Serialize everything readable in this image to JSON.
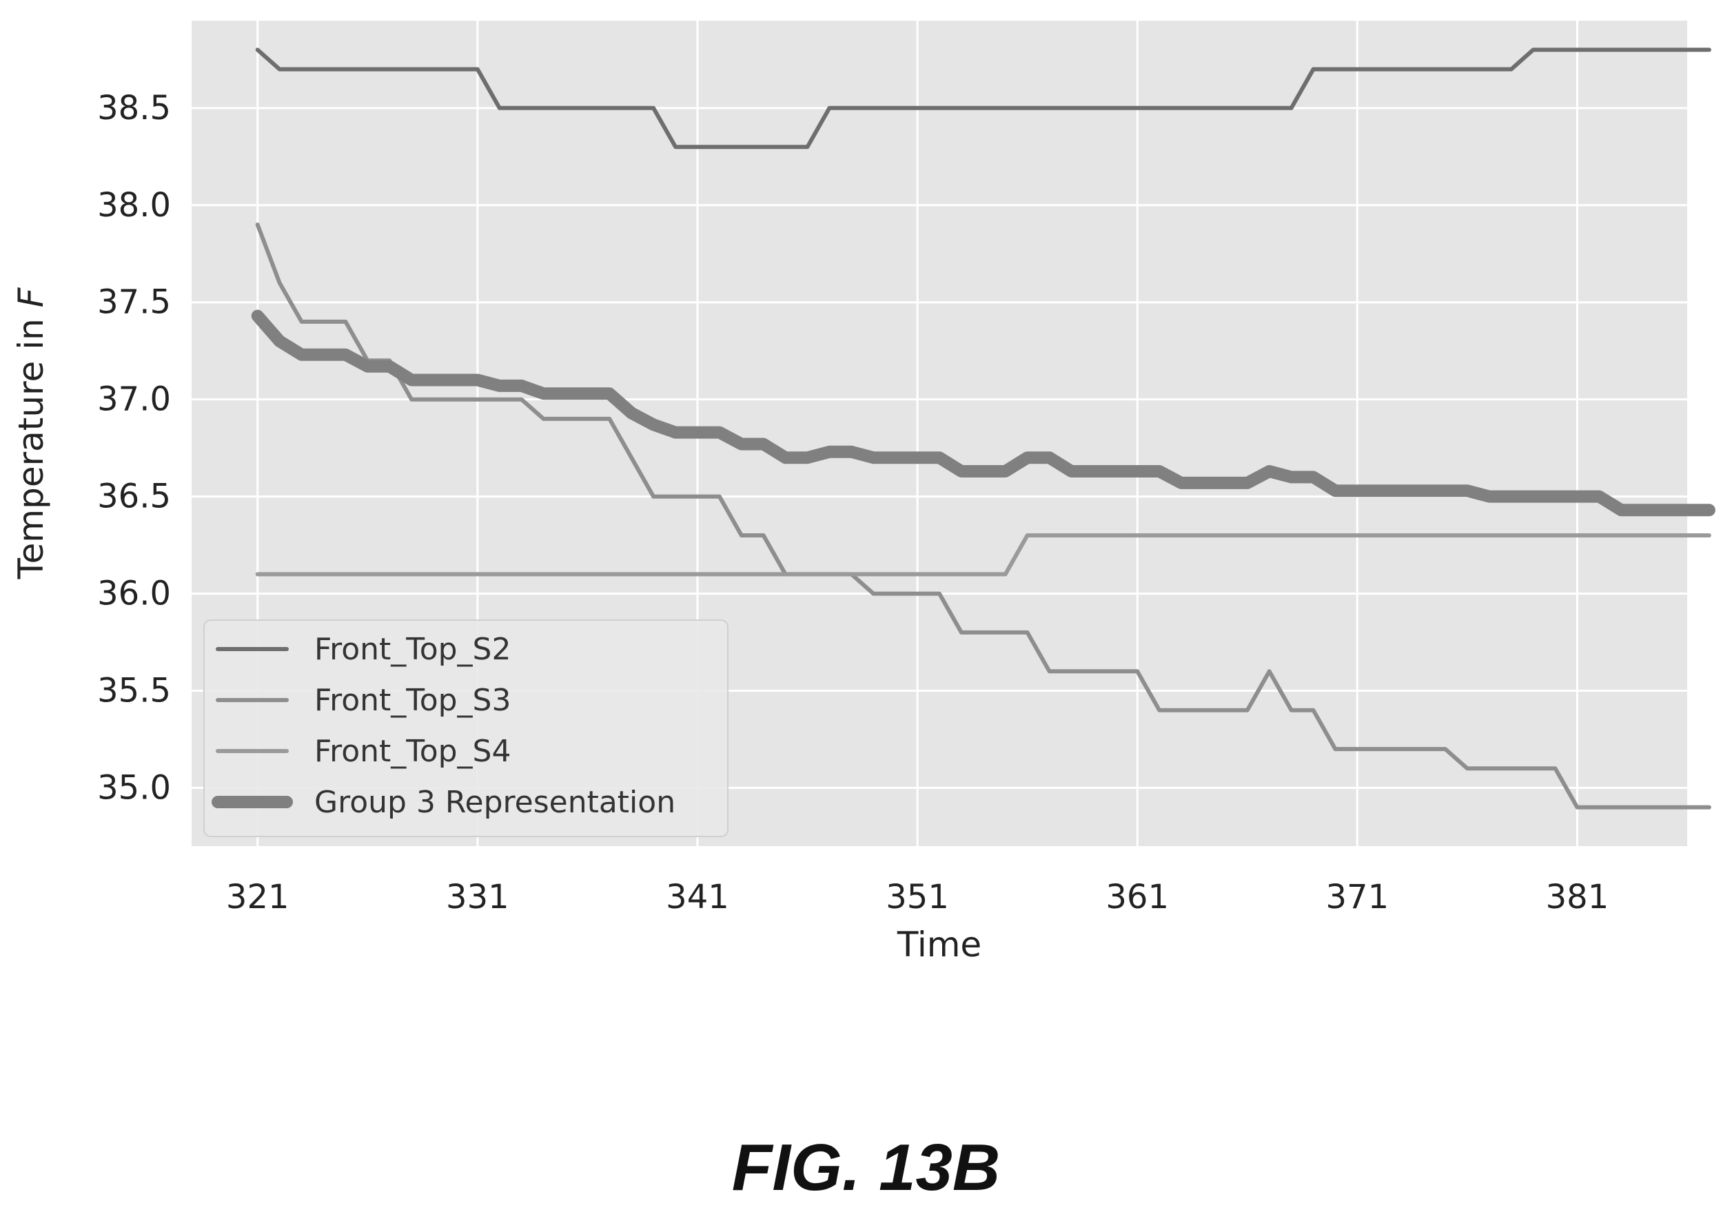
{
  "figure_caption": "FIG. 13B",
  "chart_data": {
    "type": "line",
    "title": "",
    "xlabel": "Time",
    "ylabel_prefix": "Temperature in ",
    "ylabel_unit": "F",
    "xlim": [
      318,
      386
    ],
    "ylim": [
      34.7,
      38.95
    ],
    "x_ticks": [
      321,
      331,
      341,
      351,
      361,
      371,
      381
    ],
    "y_ticks": [
      35.0,
      35.5,
      36.0,
      36.5,
      37.0,
      37.5,
      38.0,
      38.5
    ],
    "y_tick_labels": [
      "35.0",
      "35.5",
      "36.0",
      "36.5",
      "37.0",
      "37.5",
      "38.0",
      "38.5"
    ],
    "grid": true,
    "legend_position": "lower-left",
    "background_color": "#e5e5e5",
    "series": [
      {
        "name": "Front_Top_S2",
        "color": "#6e6e6e",
        "width": "thin",
        "points": [
          [
            321,
            38.8
          ],
          [
            322,
            38.7
          ],
          [
            331,
            38.7
          ],
          [
            332,
            38.5
          ],
          [
            339,
            38.5
          ],
          [
            340,
            38.3
          ],
          [
            346,
            38.3
          ],
          [
            347,
            38.5
          ],
          [
            368,
            38.5
          ],
          [
            369,
            38.7
          ],
          [
            378,
            38.7
          ],
          [
            379,
            38.8
          ],
          [
            387,
            38.8
          ]
        ]
      },
      {
        "name": "Front_Top_S3",
        "color": "#8e8e8e",
        "width": "thin",
        "points": [
          [
            321,
            37.9
          ],
          [
            322,
            37.6
          ],
          [
            323,
            37.4
          ],
          [
            325,
            37.4
          ],
          [
            326,
            37.2
          ],
          [
            327,
            37.2
          ],
          [
            328,
            37.0
          ],
          [
            333,
            37.0
          ],
          [
            334,
            36.9
          ],
          [
            337,
            36.9
          ],
          [
            339,
            36.5
          ],
          [
            342,
            36.5
          ],
          [
            343,
            36.3
          ],
          [
            344,
            36.3
          ],
          [
            345,
            36.1
          ],
          [
            348,
            36.1
          ],
          [
            349,
            36.0
          ],
          [
            352,
            36.0
          ],
          [
            353,
            35.8
          ],
          [
            356,
            35.8
          ],
          [
            357,
            35.6
          ],
          [
            361,
            35.6
          ],
          [
            362,
            35.4
          ],
          [
            366,
            35.4
          ],
          [
            367,
            35.6
          ],
          [
            368,
            35.4
          ],
          [
            369,
            35.4
          ],
          [
            370,
            35.2
          ],
          [
            375,
            35.2
          ],
          [
            376,
            35.1
          ],
          [
            380,
            35.1
          ],
          [
            381,
            34.9
          ],
          [
            387,
            34.9
          ]
        ]
      },
      {
        "name": "Front_Top_S4",
        "color": "#9a9a9a",
        "width": "thin",
        "points": [
          [
            321,
            36.1
          ],
          [
            355,
            36.1
          ],
          [
            356,
            36.3
          ],
          [
            387,
            36.3
          ]
        ]
      },
      {
        "name": "Group 3 Representation",
        "color": "#808080",
        "width": "thick",
        "points": [
          [
            321,
            37.43
          ],
          [
            322,
            37.3
          ],
          [
            323,
            37.23
          ],
          [
            325,
            37.23
          ],
          [
            326,
            37.17
          ],
          [
            327,
            37.17
          ],
          [
            328,
            37.1
          ],
          [
            331,
            37.1
          ],
          [
            332,
            37.07
          ],
          [
            333,
            37.07
          ],
          [
            334,
            37.03
          ],
          [
            337,
            37.03
          ],
          [
            338,
            36.93
          ],
          [
            339,
            36.87
          ],
          [
            340,
            36.83
          ],
          [
            342,
            36.83
          ],
          [
            343,
            36.77
          ],
          [
            344,
            36.77
          ],
          [
            345,
            36.7
          ],
          [
            346,
            36.7
          ],
          [
            347,
            36.73
          ],
          [
            348,
            36.73
          ],
          [
            349,
            36.7
          ],
          [
            352,
            36.7
          ],
          [
            353,
            36.63
          ],
          [
            355,
            36.63
          ],
          [
            356,
            36.7
          ],
          [
            357,
            36.7
          ],
          [
            358,
            36.63
          ],
          [
            362,
            36.63
          ],
          [
            363,
            36.57
          ],
          [
            366,
            36.57
          ],
          [
            367,
            36.63
          ],
          [
            368,
            36.6
          ],
          [
            369,
            36.6
          ],
          [
            370,
            36.53
          ],
          [
            376,
            36.53
          ],
          [
            377,
            36.5
          ],
          [
            378,
            36.5
          ],
          [
            379,
            36.5
          ],
          [
            382,
            36.5
          ],
          [
            383,
            36.43
          ],
          [
            387,
            36.43
          ]
        ]
      }
    ]
  }
}
